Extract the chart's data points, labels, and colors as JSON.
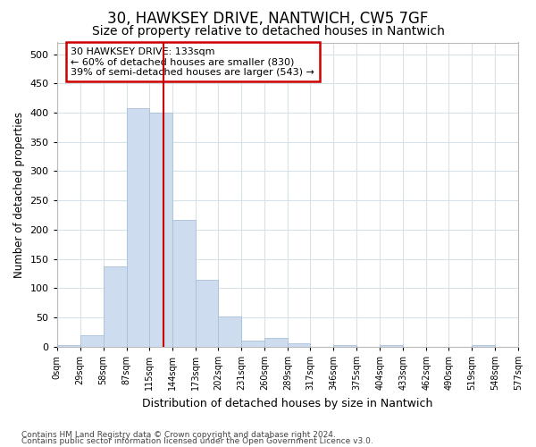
{
  "title1": "30, HAWKSEY DRIVE, NANTWICH, CW5 7GF",
  "title2": "Size of property relative to detached houses in Nantwich",
  "xlabel": "Distribution of detached houses by size in Nantwich",
  "ylabel": "Number of detached properties",
  "bin_edges": [
    0,
    29,
    58,
    87,
    115,
    144,
    173,
    202,
    231,
    260,
    289,
    317,
    346,
    375,
    404,
    433,
    462,
    490,
    519,
    548,
    577
  ],
  "bar_heights": [
    3,
    20,
    137,
    408,
    400,
    216,
    114,
    52,
    10,
    15,
    6,
    0,
    2,
    0,
    2,
    0,
    0,
    0,
    2,
    0
  ],
  "bar_color": "#cddcee",
  "bar_edge_color": "#a8c0d8",
  "vline_x": 133,
  "vline_color": "#cc0000",
  "annotation_text": "30 HAWKSEY DRIVE: 133sqm\n← 60% of detached houses are smaller (830)\n39% of semi-detached houses are larger (543) →",
  "annotation_box_color": "#ffffff",
  "annotation_box_edge": "#cc0000",
  "footnote1": "Contains HM Land Registry data © Crown copyright and database right 2024.",
  "footnote2": "Contains public sector information licensed under the Open Government Licence v3.0.",
  "ylim": [
    0,
    520
  ],
  "background_color": "#ffffff",
  "fig_background_color": "#ffffff",
  "grid_color": "#d8e0e8",
  "title1_fontsize": 12,
  "title2_fontsize": 10,
  "tick_labels": [
    "0sqm",
    "29sqm",
    "58sqm",
    "87sqm",
    "115sqm",
    "144sqm",
    "173sqm",
    "202sqm",
    "231sqm",
    "260sqm",
    "289sqm",
    "317sqm",
    "346sqm",
    "375sqm",
    "404sqm",
    "433sqm",
    "462sqm",
    "490sqm",
    "519sqm",
    "548sqm",
    "577sqm"
  ]
}
